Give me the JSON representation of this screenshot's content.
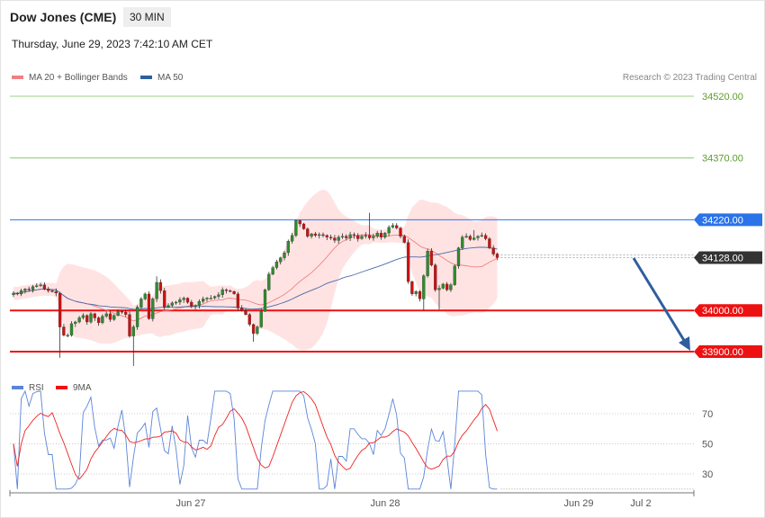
{
  "header": {
    "title": "Dow Jones (CME)",
    "timeframe": "30 MIN",
    "datetime": "Thursday, June 29, 2023 7:42:10 AM CET"
  },
  "legend": {
    "ma20": "MA 20 + Bollinger Bands",
    "ma50": "MA 50",
    "rsi": "RSI",
    "rsi_ma": "9MA"
  },
  "copyright": "Research © 2023 Trading Central",
  "colors": {
    "bollinger_fill": "#ffe3e3",
    "ma20": "#f08080",
    "ma50": "#4a6aa8",
    "up": "#2e8b2e",
    "down": "#cc1111",
    "arrow": "#2f5e9e",
    "resistance_green": "#7cc25a",
    "pivot_blue": "#2a73e8",
    "support_red": "#ee1111",
    "rsi": "#5b85d9",
    "rsi_ma": "#ee2222"
  },
  "chart_data": [
    {
      "type": "candlestick",
      "price_range": [
        33860,
        34560
      ],
      "price_levels": [
        {
          "value": 34520,
          "label": "34520.00",
          "kind": "resistance"
        },
        {
          "value": 34370,
          "label": "34370.00",
          "kind": "resistance"
        },
        {
          "value": 34220,
          "label": "34220.00",
          "kind": "pivot"
        },
        {
          "value": 34128,
          "label": "34128.00",
          "kind": "last"
        },
        {
          "value": 34000,
          "label": "34000.00",
          "kind": "support"
        },
        {
          "value": 33900,
          "label": "33900.00",
          "kind": "support"
        }
      ],
      "x_ticks": [
        "Jun 27",
        "Jun 28",
        "Jun 29",
        "Jul 2"
      ],
      "closes": [
        34042,
        34040,
        34048,
        34052,
        34050,
        34058,
        34060,
        34062,
        34052,
        34048,
        34046,
        34042,
        33960,
        33940,
        33940,
        33968,
        33972,
        33982,
        33988,
        33972,
        33992,
        33982,
        33970,
        33986,
        33992,
        33978,
        33988,
        33998,
        33996,
        33990,
        33938,
        33960,
        34008,
        34028,
        34040,
        33980,
        34028,
        34068,
        34048,
        34008,
        34012,
        34018,
        34020,
        34026,
        34030,
        34020,
        34010,
        34012,
        34022,
        34028,
        34030,
        34030,
        34034,
        34038,
        34050,
        34048,
        34046,
        34040,
        34006,
        34000,
        33990,
        33966,
        33944,
        33960,
        33998,
        34050,
        34088,
        34104,
        34118,
        34128,
        34140,
        34168,
        34182,
        34218,
        34210,
        34198,
        34180,
        34186,
        34182,
        34184,
        34182,
        34178,
        34176,
        34170,
        34178,
        34180,
        34176,
        34184,
        34182,
        34174,
        34180,
        34182,
        34176,
        34180,
        34188,
        34178,
        34188,
        34202,
        34206,
        34200,
        34180,
        34165,
        34070,
        34040,
        34046,
        34028,
        34084,
        34144,
        34110,
        34050,
        34054,
        34064,
        34050,
        34062,
        34108,
        34152,
        34178,
        34180,
        34172,
        34176,
        34180,
        34182,
        34174,
        34152,
        34137,
        34128
      ],
      "ohlc_note": "",
      "rsi_range": [
        10,
        90
      ],
      "rsi_ticks": [
        70,
        50,
        30
      ]
    }
  ]
}
